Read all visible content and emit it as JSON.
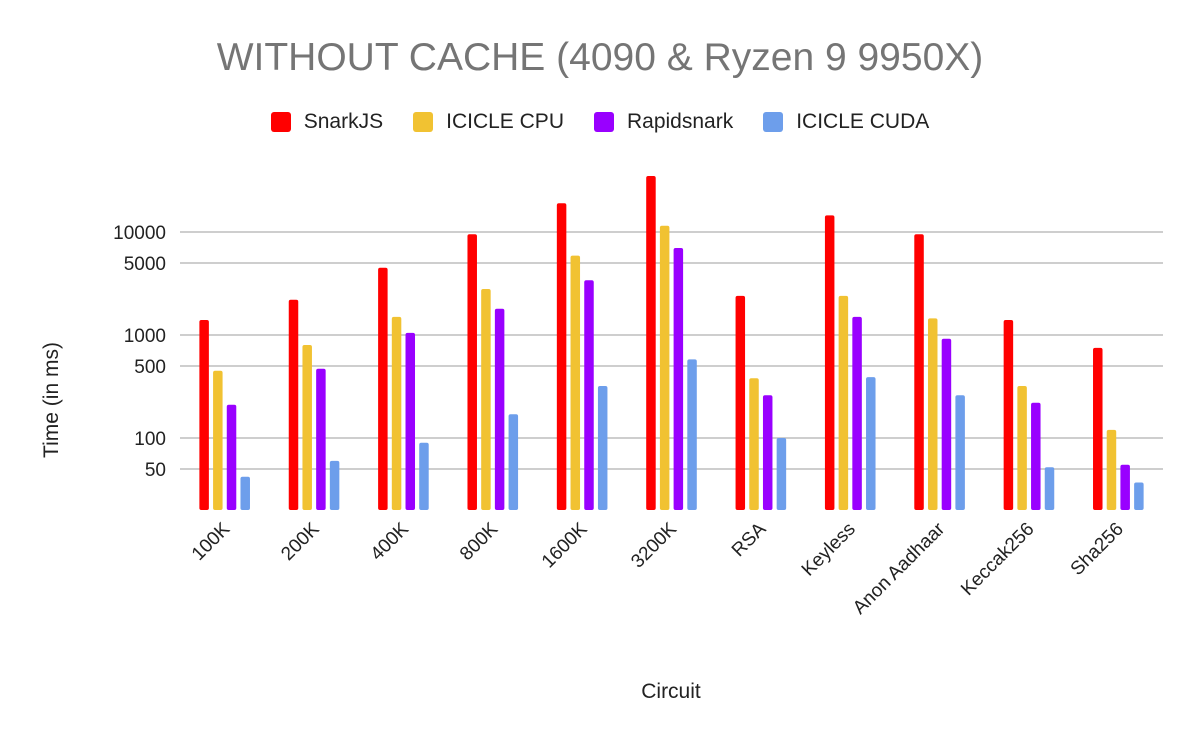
{
  "chart_data": {
    "type": "bar",
    "title": "WITHOUT CACHE (4090 & Ryzen 9 9950X)",
    "xlabel": "Circuit",
    "ylabel": "Time (in ms)",
    "y_scale": "log",
    "yticks": [
      50,
      100,
      500,
      1000,
      5000,
      10000
    ],
    "ylim": [
      20,
      30000
    ],
    "grid": true,
    "legend_position": "top",
    "categories": [
      "100K",
      "200K",
      "400K",
      "800K",
      "1600K",
      "3200K",
      "RSA",
      "Keyless",
      "Anon Aadhaar",
      "Keccak256",
      "Sha256"
    ],
    "series": [
      {
        "name": "SnarkJS",
        "color": "#ff0000",
        "values": [
          1400,
          2200,
          4500,
          9500,
          19000,
          36000,
          2400,
          14500,
          9500,
          1400,
          750
        ]
      },
      {
        "name": "ICICLE CPU",
        "color": "#f1c232",
        "values": [
          450,
          800,
          1500,
          2800,
          5900,
          11500,
          380,
          2400,
          1450,
          320,
          120
        ]
      },
      {
        "name": "Rapidsnark",
        "color": "#9900ff",
        "values": [
          210,
          470,
          1050,
          1800,
          3400,
          7000,
          260,
          1500,
          920,
          220,
          55
        ]
      },
      {
        "name": "ICICLE CUDA",
        "color": "#6d9eeb",
        "values": [
          42,
          60,
          90,
          170,
          320,
          580,
          100,
          390,
          260,
          52,
          37
        ]
      }
    ]
  }
}
